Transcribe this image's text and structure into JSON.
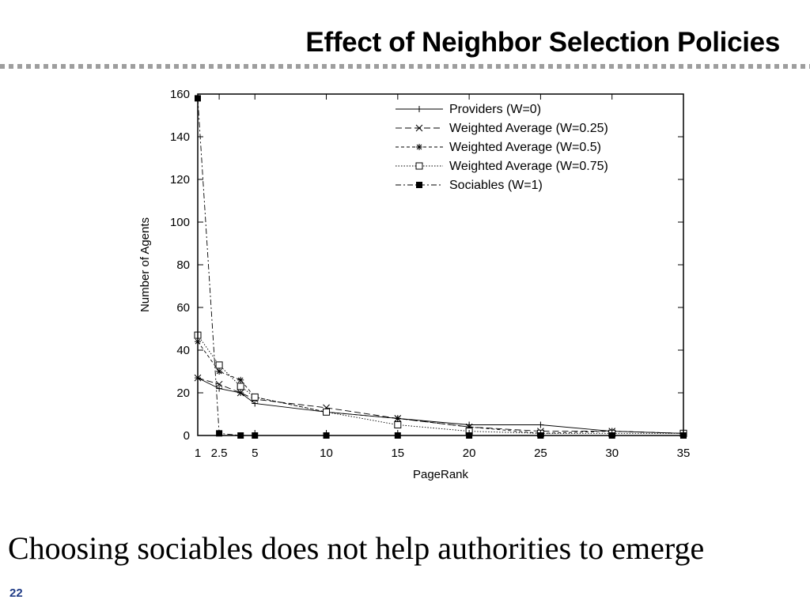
{
  "slide": {
    "title": "Effect of Neighbor Selection Policies",
    "caption": "Choosing sociables does not help authorities to emerge",
    "number": "22",
    "divider_color": "#9e9e9e"
  },
  "chart_data": {
    "type": "line",
    "title": "",
    "xlabel": "PageRank",
    "ylabel": "Number of Agents",
    "xlim": [
      1,
      35
    ],
    "ylim": [
      0,
      160
    ],
    "x_ticks": [
      {
        "value": 1,
        "label": "1"
      },
      {
        "value": 2.5,
        "label": "2.5"
      },
      {
        "value": 5,
        "label": "5"
      },
      {
        "value": 10,
        "label": "10"
      },
      {
        "value": 15,
        "label": "15"
      },
      {
        "value": 20,
        "label": "20"
      },
      {
        "value": 25,
        "label": "25"
      },
      {
        "value": 30,
        "label": "30"
      },
      {
        "value": 35,
        "label": "35"
      }
    ],
    "y_ticks": [
      0,
      20,
      40,
      60,
      80,
      100,
      120,
      140,
      160
    ],
    "grid": false,
    "legend_position": "top-right",
    "series": [
      {
        "name": "Providers (W=0)",
        "marker": "plus",
        "dash": "none",
        "points": [
          [
            1,
            27
          ],
          [
            2.5,
            22
          ],
          [
            4,
            20
          ],
          [
            5,
            15
          ],
          [
            10,
            11
          ],
          [
            15,
            8
          ],
          [
            20,
            5
          ],
          [
            25,
            5
          ],
          [
            30,
            2
          ],
          [
            35,
            1
          ]
        ]
      },
      {
        "name": "Weighted Average (W=0.25)",
        "marker": "cross",
        "dash": "8,4",
        "points": [
          [
            1,
            27
          ],
          [
            2.5,
            24
          ],
          [
            4,
            20
          ],
          [
            5,
            17
          ],
          [
            10,
            13
          ],
          [
            15,
            8
          ],
          [
            20,
            4
          ],
          [
            25,
            2
          ],
          [
            30,
            2
          ],
          [
            35,
            1
          ]
        ]
      },
      {
        "name": "Weighted Average (W=0.5)",
        "marker": "star",
        "dash": "4,3",
        "points": [
          [
            1,
            44
          ],
          [
            2.5,
            30
          ],
          [
            4,
            26
          ],
          [
            5,
            18
          ],
          [
            10,
            11
          ],
          [
            15,
            8
          ],
          [
            20,
            4
          ],
          [
            25,
            1
          ],
          [
            30,
            2
          ],
          [
            35,
            1
          ]
        ]
      },
      {
        "name": "Weighted Average (W=0.75)",
        "marker": "square-open",
        "dash": "1.5,2",
        "points": [
          [
            1,
            47
          ],
          [
            2.5,
            33
          ],
          [
            4,
            23
          ],
          [
            5,
            18
          ],
          [
            10,
            11
          ],
          [
            15,
            5
          ],
          [
            20,
            2
          ],
          [
            25,
            1
          ],
          [
            30,
            1
          ],
          [
            35,
            1
          ]
        ]
      },
      {
        "name": "Sociables (W=1)",
        "marker": "square-filled",
        "dash": "7,3,2,3",
        "points": [
          [
            1,
            158
          ],
          [
            2.5,
            1
          ],
          [
            4,
            0
          ],
          [
            5,
            0
          ],
          [
            10,
            0
          ],
          [
            15,
            0
          ],
          [
            20,
            0
          ],
          [
            25,
            0
          ],
          [
            30,
            0
          ],
          [
            35,
            0
          ]
        ]
      }
    ]
  }
}
